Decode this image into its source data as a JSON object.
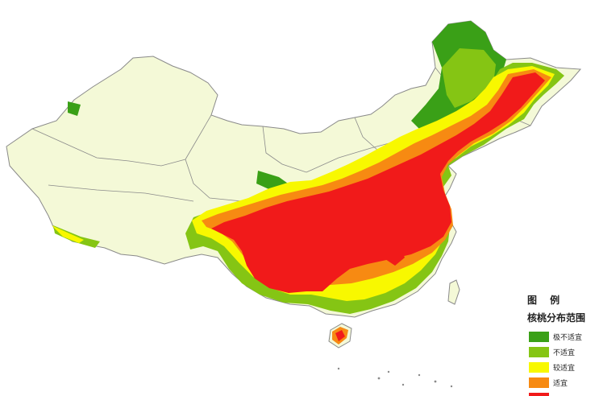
{
  "legend": {
    "title": "图 例",
    "subtitle": "核桃分布范围",
    "items": [
      {
        "label": "极不适宜",
        "color": "#3aa017"
      },
      {
        "label": "不适宜",
        "color": "#85c514"
      },
      {
        "label": "较适宜",
        "color": "#f8f800"
      },
      {
        "label": "适宜",
        "color": "#f78a12"
      },
      {
        "label": "",
        "color": "#f11a1a"
      }
    ]
  },
  "map_colors": {
    "base": "#f4f9d7",
    "border": "#8a8a8a",
    "water": "#ffffff"
  }
}
